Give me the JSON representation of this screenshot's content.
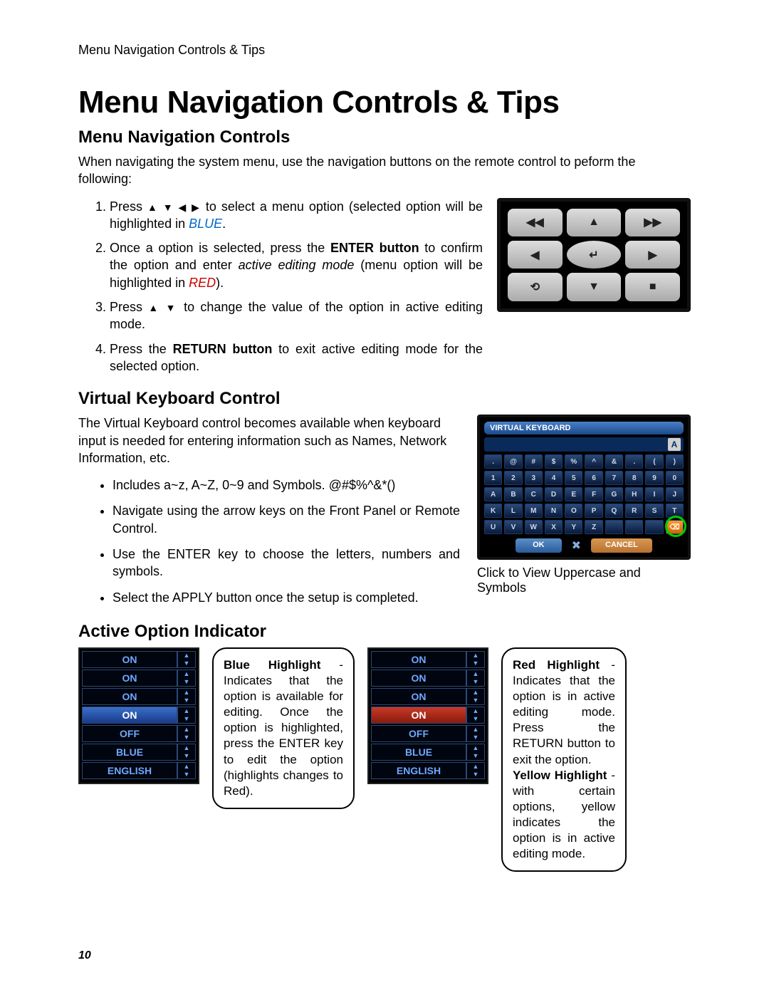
{
  "header": "Menu Navigation Controls & Tips",
  "title": "Menu Navigation Controls & Tips",
  "section1": {
    "heading": "Menu Navigation Controls",
    "intro": "When navigating the system menu, use the navigation buttons on the remote control to peform the following:",
    "step1_a": "Press ",
    "step1_arrows": "▲ ▼ ◀ ▶",
    "step1_b": " to select a menu option (selected option will be highlighted in ",
    "step1_blue": "BLUE",
    "step1_c": ".",
    "step2_a": "Once a option is selected, press the ",
    "step2_bold": "ENTER button",
    "step2_b": " to confirm the option and enter ",
    "step2_italic": "active editing mode",
    "step2_c": " (menu option will be highlighted in ",
    "step2_red": "RED",
    "step2_d": ").",
    "step3_a": "Press ",
    "step3_arrows": "▲ ▼",
    "step3_b": " to change the value of the option in active editing mode.",
    "step4_a": "Press the ",
    "step4_bold": "RETURN button",
    "step4_b": " to exit active editing mode for the selected option."
  },
  "remote_buttons": [
    "◀◀",
    "▲",
    "▶▶",
    "◀",
    "↵",
    "▶",
    "⟲",
    "▼",
    "■"
  ],
  "section2": {
    "heading": "Virtual Keyboard Control",
    "intro": "The Virtual Keyboard control becomes available when keyboard input is needed for entering information such as Names, Network Information, etc.",
    "b1": "Includes a~z, A~Z, 0~9 and Symbols. @#$%^&*()",
    "b2": "Navigate using the arrow keys on the Front Panel or Remote Control.",
    "b3": "Use the ENTER key to choose the letters, numbers and symbols.",
    "b4": "Select the APPLY button once the setup is completed.",
    "vk_title": "VIRTUAL KEYBOARD",
    "vk_caption": "Click to View Uppercase and Symbols",
    "vk_row1": [
      ".",
      "@",
      "#",
      "$",
      "%",
      "^",
      "&",
      ".",
      "(",
      ")"
    ],
    "vk_row2": [
      "1",
      "2",
      "3",
      "4",
      "5",
      "6",
      "7",
      "8",
      "9",
      "0"
    ],
    "vk_row3": [
      "A",
      "B",
      "C",
      "D",
      "E",
      "F",
      "G",
      "H",
      "I",
      "J"
    ],
    "vk_row4": [
      "K",
      "L",
      "M",
      "N",
      "O",
      "P",
      "Q",
      "R",
      "S",
      "T"
    ],
    "vk_row5": [
      "U",
      "V",
      "W",
      "X",
      "Y",
      "Z",
      "",
      "",
      "",
      ""
    ],
    "vk_ok": "OK",
    "vk_cancel": "CANCEL"
  },
  "section3": {
    "heading": "Active Option Indicator",
    "opts_blue": [
      {
        "label": "ON",
        "hl": "none"
      },
      {
        "label": "ON",
        "hl": "none"
      },
      {
        "label": "ON",
        "hl": "none"
      },
      {
        "label": "ON",
        "hl": "blue"
      },
      {
        "label": "OFF",
        "hl": "none"
      },
      {
        "label": "BLUE",
        "hl": "none"
      },
      {
        "label": "ENGLISH",
        "hl": "none"
      }
    ],
    "opts_red": [
      {
        "label": "ON",
        "hl": "none"
      },
      {
        "label": "ON",
        "hl": "none"
      },
      {
        "label": "ON",
        "hl": "none"
      },
      {
        "label": "ON",
        "hl": "red"
      },
      {
        "label": "OFF",
        "hl": "none"
      },
      {
        "label": "BLUE",
        "hl": "none"
      },
      {
        "label": "ENGLISH",
        "hl": "none"
      }
    ],
    "callout1_bold": "Blue Highlight",
    "callout1_body": " - Indicates that the option is available for editing. Once the option is highlighted, press the ENTER key to edit the option (highlights changes to Red).",
    "callout2_bold1": "Red Highlight",
    "callout2_body1": " - Indicates that the option is in active editing mode. Press the RETURN button to exit the option.",
    "callout2_bold2": "Yellow Highlight",
    "callout2_body2": " - with certain options, yellow indicates the option is in active editing mode."
  },
  "page_number": "10"
}
